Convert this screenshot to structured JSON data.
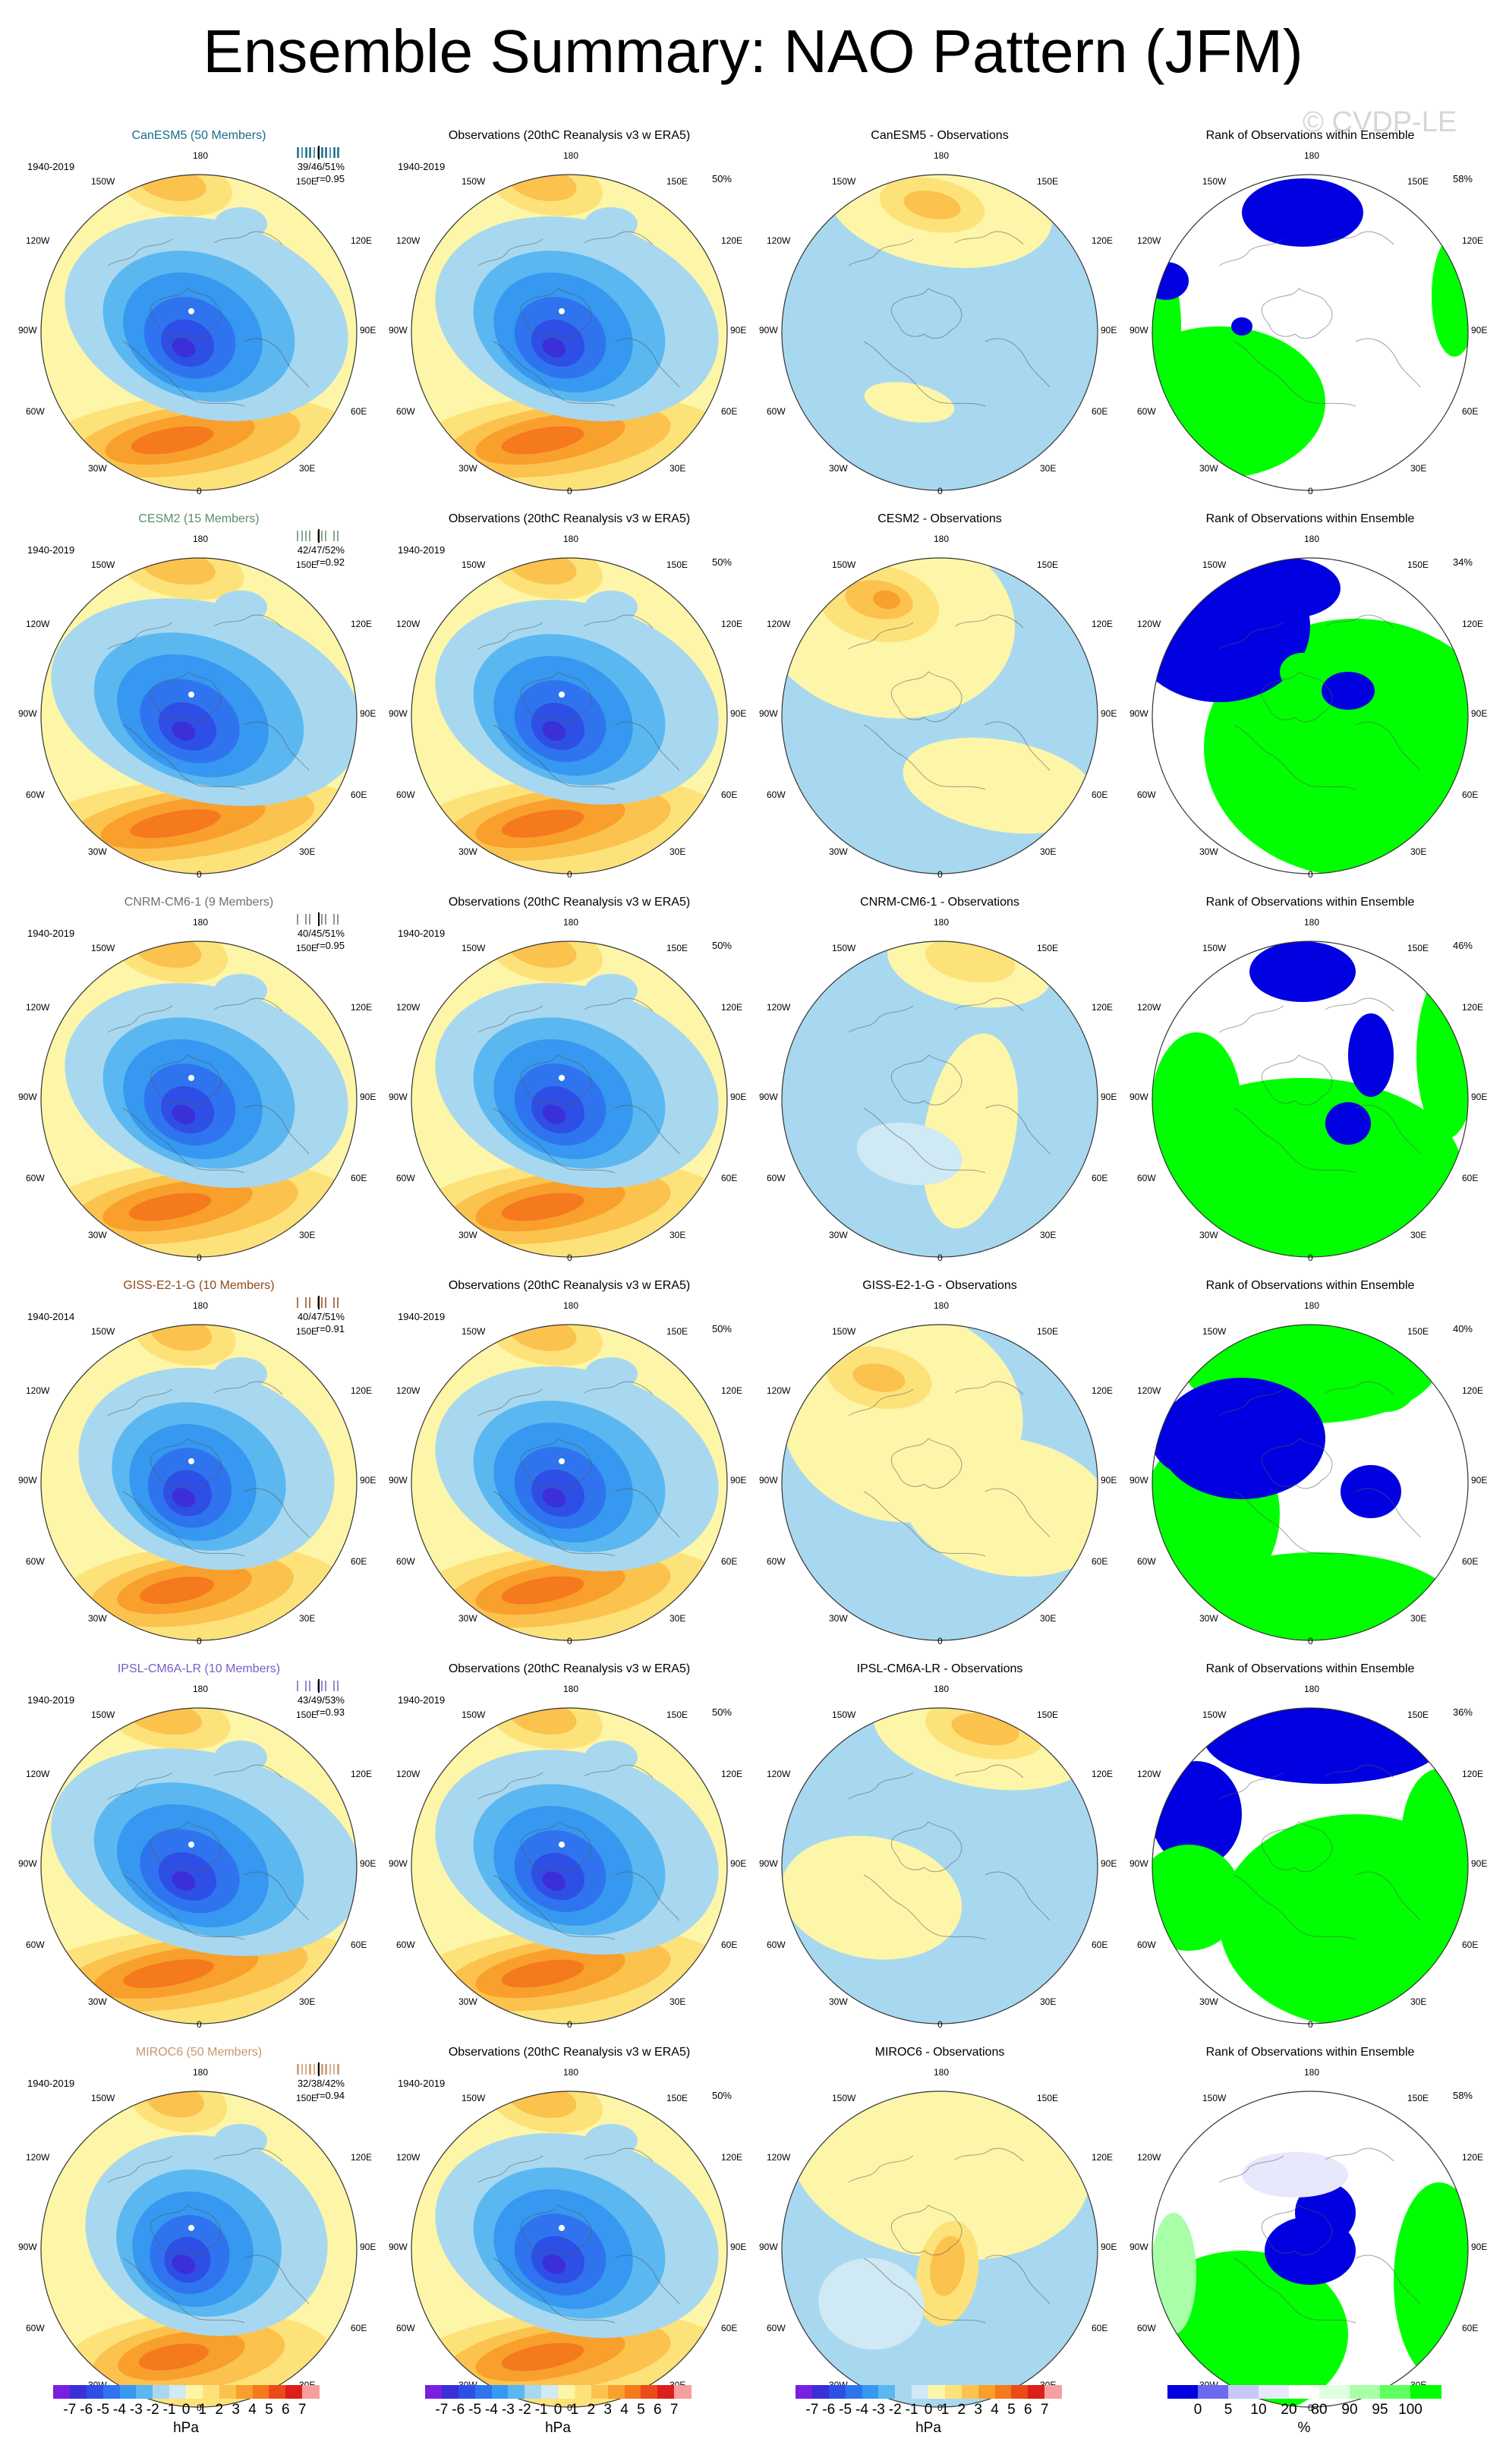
{
  "page": {
    "title": "Ensemble Summary: NAO Pattern (JFM)",
    "watermark": "© CVDP-LE"
  },
  "longitude_labels": {
    "top": "180",
    "w150": "150W",
    "e150": "150E",
    "w120": "120W",
    "e120": "120E",
    "w90": "90W",
    "e90": "90E",
    "w60": "60W",
    "e60": "60E",
    "w30": "30W",
    "e30": "30E",
    "bottom": "0"
  },
  "rows": [
    {
      "model": {
        "title": "CanESM5 (50 Members)",
        "color": "#1a6b8c",
        "period": "1940-2019",
        "stats_line1": "39/46/51%",
        "stats_line2": "r=0.95",
        "variant": 0
      },
      "obs": {
        "title": "Observations (20thC Reanalysis v3 w ERA5)",
        "period": "1940-2019",
        "pct": "50%"
      },
      "diff": {
        "title": "CanESM5 - Observations"
      },
      "rank": {
        "title": "Rank of Observations within Ensemble",
        "pct": "58%"
      }
    },
    {
      "model": {
        "title": "CESM2 (15 Members)",
        "color": "#5e8c6a",
        "period": "1940-2019",
        "stats_line1": "42/47/52%",
        "stats_line2": "r=0.92",
        "variant": 1
      },
      "obs": {
        "title": "Observations (20thC Reanalysis v3 w ERA5)",
        "period": "1940-2019",
        "pct": "50%"
      },
      "diff": {
        "title": "CESM2 - Observations"
      },
      "rank": {
        "title": "Rank of Observations within Ensemble",
        "pct": "34%"
      }
    },
    {
      "model": {
        "title": "CNRM-CM6-1 (9 Members)",
        "color": "#707070",
        "period": "1940-2019",
        "stats_line1": "40/45/51%",
        "stats_line2": "r=0.95",
        "variant": 2
      },
      "obs": {
        "title": "Observations (20thC Reanalysis v3 w ERA5)",
        "period": "1940-2019",
        "pct": "50%"
      },
      "diff": {
        "title": "CNRM-CM6-1 - Observations"
      },
      "rank": {
        "title": "Rank of Observations within Ensemble",
        "pct": "46%"
      }
    },
    {
      "model": {
        "title": "GISS-E2-1-G (10 Members)",
        "color": "#8c4a1e",
        "period": "1940-2014",
        "stats_line1": "40/47/51%",
        "stats_line2": "r=0.91",
        "variant": 3
      },
      "obs": {
        "title": "Observations (20thC Reanalysis v3 w ERA5)",
        "period": "1940-2019",
        "pct": "50%"
      },
      "diff": {
        "title": "GISS-E2-1-G - Observations"
      },
      "rank": {
        "title": "Rank of Observations within Ensemble",
        "pct": "40%"
      }
    },
    {
      "model": {
        "title": "IPSL-CM6A-LR (10 Members)",
        "color": "#7a5cc7",
        "period": "1940-2019",
        "stats_line1": "43/49/53%",
        "stats_line2": "r=0.93",
        "variant": 4
      },
      "obs": {
        "title": "Observations (20thC Reanalysis v3 w ERA5)",
        "period": "1940-2019",
        "pct": "50%"
      },
      "diff": {
        "title": "IPSL-CM6A-LR - Observations"
      },
      "rank": {
        "title": "Rank of Observations within Ensemble",
        "pct": "36%"
      }
    },
    {
      "model": {
        "title": "MIROC6 (50 Members)",
        "color": "#c8966e",
        "period": "1940-2019",
        "stats_line1": "32/38/42%",
        "stats_line2": "r=0.94",
        "variant": 5
      },
      "obs": {
        "title": "Observations (20thC Reanalysis v3 w ERA5)",
        "period": "1940-2019",
        "pct": "50%"
      },
      "diff": {
        "title": "MIROC6 - Observations"
      },
      "rank": {
        "title": "Rank of Observations within Ensemble",
        "pct": "58%"
      }
    }
  ],
  "colorbars": {
    "hpa": {
      "unit": "hPa",
      "ticks": [
        "-7",
        "-6",
        "-5",
        "-4",
        "-3",
        "-2",
        "-1",
        "0",
        "1",
        "2",
        "3",
        "4",
        "5",
        "6",
        "7"
      ],
      "colors": [
        "#7a1fe0",
        "#3b2fd8",
        "#2e4fe6",
        "#2f74ee",
        "#3698f0",
        "#5bb7f0",
        "#a8d8f0",
        "#cfe9f5",
        "#fdf6a8",
        "#fde27a",
        "#fcc24e",
        "#f99f2c",
        "#f5791d",
        "#ec4a18",
        "#dc1f1a",
        "#f5a0a0"
      ]
    },
    "rank": {
      "unit": "%",
      "ticks": [
        "0",
        "5",
        "10",
        "20",
        "80",
        "90",
        "95",
        "100"
      ],
      "colors": [
        "#0000e0",
        "#6a6af0",
        "#c8c8f8",
        "#e8e8fc",
        "#ffffff",
        "#e0ffe0",
        "#a8ffa8",
        "#60ff60",
        "#00ff00"
      ]
    }
  },
  "colors": {
    "yellow": "#fdf6a8",
    "lightblue": "#a8d8f0",
    "blue": "#2e4fe6",
    "green": "#00ff00"
  }
}
